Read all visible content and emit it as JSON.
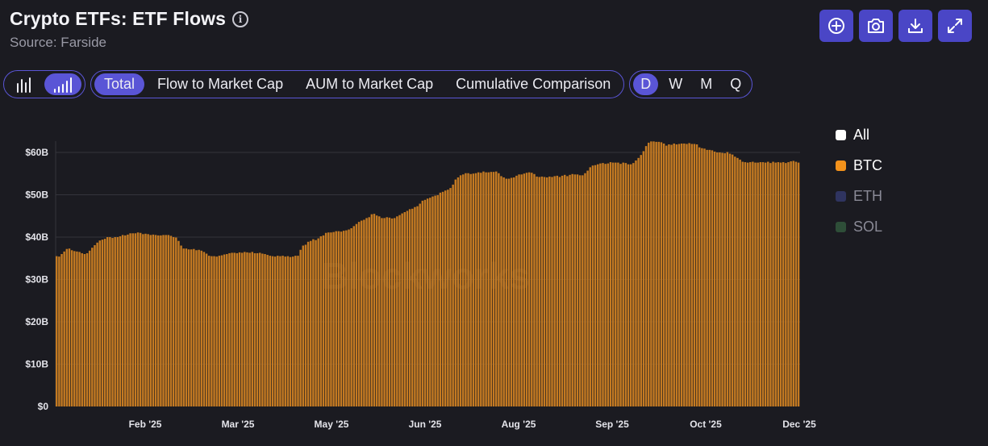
{
  "header": {
    "title": "Crypto ETFs: ETF Flows",
    "info_icon": "info-icon",
    "source": "Source: Farside"
  },
  "toolbar": {
    "buttons": [
      {
        "name": "add-icon"
      },
      {
        "name": "camera-icon"
      },
      {
        "name": "download-icon"
      },
      {
        "name": "expand-icon"
      }
    ],
    "accent": "#4a46c6"
  },
  "controls": {
    "chart_types": [
      {
        "icon": "bar-chart-icon",
        "active": false
      },
      {
        "icon": "bar-chart-ascending-icon",
        "active": true
      }
    ],
    "metrics": [
      {
        "label": "Total",
        "active": true
      },
      {
        "label": "Flow to Market Cap",
        "active": false
      },
      {
        "label": "AUM to Market Cap",
        "active": false
      },
      {
        "label": "Cumulative Comparison",
        "active": false
      }
    ],
    "intervals": [
      {
        "label": "D",
        "active": true
      },
      {
        "label": "W",
        "active": false
      },
      {
        "label": "M",
        "active": false
      },
      {
        "label": "Q",
        "active": false
      }
    ]
  },
  "legend": [
    {
      "label": "All",
      "color": "#ffffff",
      "active": true
    },
    {
      "label": "BTC",
      "color": "#f3921b",
      "active": true
    },
    {
      "label": "ETH",
      "color": "#2f3460",
      "active": false
    },
    {
      "label": "SOL",
      "color": "#2e4e38",
      "active": false
    }
  ],
  "chart_data": {
    "type": "bar",
    "watermark": "Blockworks",
    "y_ticks": [
      "$0",
      "$10B",
      "$20B",
      "$30B",
      "$40B",
      "$50B",
      "$60B"
    ],
    "ylim": [
      0,
      60
    ],
    "x_ticks": [
      "Feb '25",
      "Mar '25",
      "May '25",
      "Jun '25",
      "Aug '25",
      "Sep '25",
      "Oct '25",
      "Dec '25"
    ],
    "series": [
      {
        "name": "BTC",
        "color": "#c47a22",
        "values": [
          35.5,
          35.4,
          36,
          36.6,
          37.2,
          37.3,
          36.9,
          36.7,
          36.6,
          36.5,
          36.2,
          36,
          36.2,
          36.8,
          37.5,
          38.1,
          38.7,
          39.2,
          39.4,
          39.6,
          40,
          40,
          39.8,
          40,
          40,
          40.2,
          40.5,
          40.4,
          40.6,
          40.9,
          40.9,
          40.9,
          41.1,
          41,
          40.7,
          40.8,
          40.7,
          40.5,
          40.6,
          40.5,
          40.4,
          40.4,
          40.5,
          40.5,
          40.5,
          40.3,
          40,
          39.9,
          39.1,
          38,
          37.3,
          37.3,
          37.1,
          37.1,
          37.2,
          36.9,
          37,
          36.8,
          36.5,
          36.1,
          35.6,
          35.5,
          35.5,
          35.4,
          35.6,
          35.7,
          35.9,
          36,
          36.2,
          36.3,
          36.3,
          36.2,
          36.4,
          36.3,
          36.5,
          36.4,
          36.3,
          36.5,
          36.2,
          36.2,
          36.3,
          36.1,
          36,
          35.8,
          35.6,
          35.5,
          35.4,
          35.6,
          35.5,
          35.6,
          35.4,
          35.5,
          35.3,
          35.4,
          35.6,
          35.6,
          37,
          38,
          38.2,
          38.9,
          39.1,
          39.5,
          39.3,
          39.7,
          40.2,
          40.4,
          41,
          41.1,
          41.1,
          41.2,
          41.4,
          41.4,
          41.3,
          41.5,
          41.6,
          41.8,
          42.1,
          42.6,
          43.1,
          43.6,
          43.9,
          44.1,
          44.5,
          44.7,
          45.4,
          45.5,
          45.1,
          44.9,
          44.5,
          44.5,
          44.7,
          44.6,
          44.4,
          44.5,
          44.9,
          45.2,
          45.6,
          45.9,
          46.2,
          46.6,
          46.7,
          47.1,
          47.3,
          47.9,
          48.6,
          48.8,
          49.1,
          49.3,
          49.6,
          49.8,
          49.9,
          50.5,
          50.7,
          51,
          51.2,
          51.6,
          52.4,
          53.6,
          54.1,
          54.6,
          54.8,
          55.1,
          55.1,
          54.9,
          55,
          55.1,
          55.3,
          55.2,
          55.5,
          55.3,
          55.3,
          55.4,
          55.4,
          55.5,
          55.1,
          54.4,
          54.1,
          53.8,
          53.8,
          54,
          54.1,
          54.5,
          54.8,
          54.8,
          55,
          55.2,
          55.3,
          55.2,
          54.9,
          54.3,
          54.2,
          54.3,
          54.2,
          54.1,
          54.3,
          54.2,
          54.4,
          54.5,
          54.2,
          54.5,
          54.7,
          54.4,
          54.7,
          54.9,
          54.8,
          54.8,
          54.6,
          54.6,
          55.1,
          55.7,
          56.5,
          56.9,
          57,
          57.2,
          57.4,
          57.5,
          57.3,
          57.4,
          57.7,
          57.6,
          57.6,
          57.6,
          57.3,
          57.6,
          57.5,
          57.2,
          57.2,
          57.5,
          58.1,
          58.7,
          59.4,
          60.3,
          61.5,
          62.3,
          62.6,
          62.6,
          62.5,
          62.5,
          62.4,
          62.1,
          61.6,
          61.9,
          61.8,
          62.1,
          61.9,
          62,
          62.1,
          62.1,
          62,
          62.2,
          62,
          62,
          61.9,
          61.2,
          61,
          60.9,
          60.6,
          60.6,
          60.5,
          60.2,
          60,
          60,
          59.9,
          59.8,
          60.1,
          59.7,
          59.5,
          59,
          58.7,
          58.3,
          57.8,
          57.7,
          57.6,
          57.7,
          57.8,
          57.6,
          57.6,
          57.7,
          57.7,
          57.6,
          57.8,
          57.5,
          57.8,
          57.6,
          57.7,
          57.6,
          57.7,
          57.5,
          57.7,
          57.9,
          58,
          57.8,
          57.6
        ]
      }
    ]
  }
}
